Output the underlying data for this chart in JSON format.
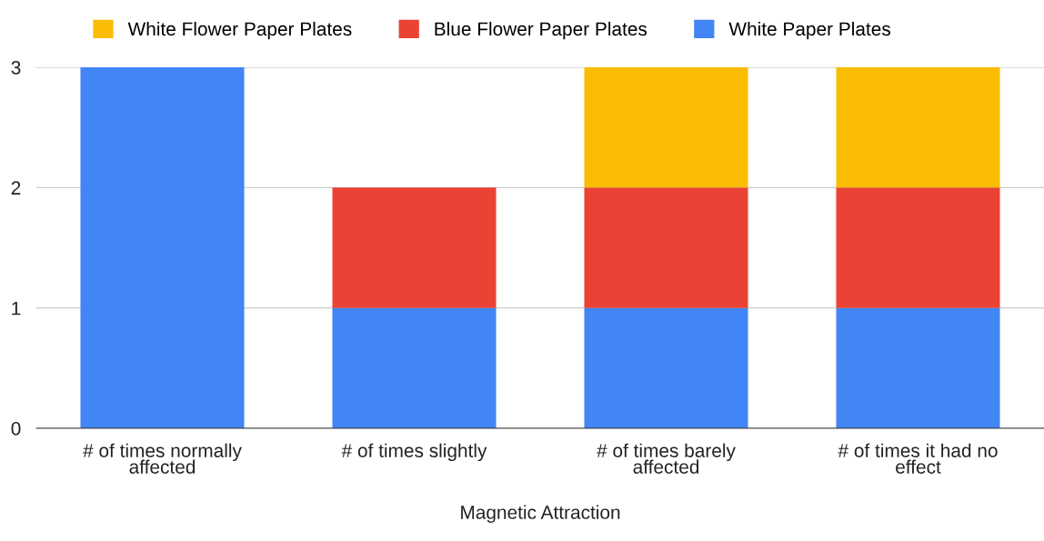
{
  "chart_data": {
    "type": "bar",
    "stacked": true,
    "xlabel": "Magnetic Attraction",
    "categories": [
      "# of times normally affected",
      "# of times slightly",
      "# of times barely affected",
      "# of times it had no effect"
    ],
    "series": [
      {
        "name": "White Paper Plates",
        "color": "#4285f4",
        "values": [
          3,
          1,
          1,
          1
        ]
      },
      {
        "name": "Blue Flower Paper Plates",
        "color": "#ea4335",
        "values": [
          0,
          1,
          1,
          1
        ]
      },
      {
        "name": "White Flower Paper Plates",
        "color": "#fbbc04",
        "values": [
          0,
          0,
          1,
          1
        ]
      }
    ],
    "ylim": [
      0,
      3
    ],
    "yticks": [
      0,
      1,
      2,
      3
    ],
    "grid": "y",
    "legend": "top"
  }
}
